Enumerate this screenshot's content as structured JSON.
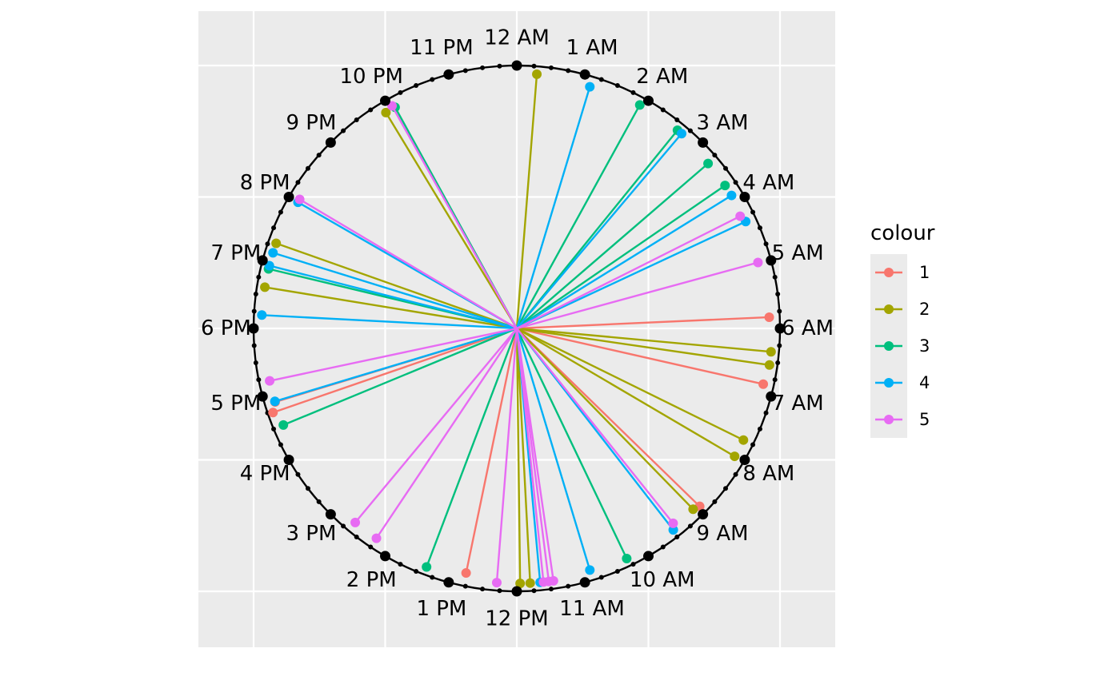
{
  "chart_data": {
    "type": "radial-clock",
    "title": "",
    "clock_labels": [
      "12 AM",
      "1 AM",
      "2 AM",
      "3 AM",
      "4 AM",
      "5 AM",
      "6 AM",
      "7 AM",
      "8 AM",
      "9 AM",
      "10 AM",
      "11 AM",
      "12 PM",
      "1 PM",
      "2 PM",
      "3 PM",
      "4 PM",
      "5 PM",
      "6 PM",
      "7 PM",
      "8 PM",
      "9 PM",
      "10 PM",
      "11 PM"
    ],
    "minor_ticks_per_hour": 3,
    "grid": true,
    "legend": {
      "title": "colour",
      "placement": "right",
      "entries": [
        {
          "label": "1",
          "color": "#F8766D"
        },
        {
          "label": "2",
          "color": "#A3A500"
        },
        {
          "label": "3",
          "color": "#00BF7D"
        },
        {
          "label": "4",
          "color": "#00B0F6"
        },
        {
          "label": "5",
          "color": "#E76BF3"
        }
      ]
    },
    "series": [
      {
        "name": "1",
        "points": [
          {
            "hour": 5.83,
            "r": 0.96
          },
          {
            "hour": 6.85,
            "r": 0.96
          },
          {
            "hour": 8.95,
            "r": 0.97
          },
          {
            "hour": 12.78,
            "r": 0.95
          },
          {
            "hour": 16.87,
            "r": 0.96
          },
          {
            "hour": 16.73,
            "r": 0.98
          }
        ]
      },
      {
        "name": "2",
        "points": [
          {
            "hour": 0.3,
            "r": 0.97
          },
          {
            "hour": 6.35,
            "r": 0.97
          },
          {
            "hour": 6.55,
            "r": 0.97
          },
          {
            "hour": 7.75,
            "r": 0.96
          },
          {
            "hour": 8.03,
            "r": 0.96
          },
          {
            "hour": 9.05,
            "r": 0.96
          },
          {
            "hour": 11.95,
            "r": 0.97
          },
          {
            "hour": 11.8,
            "r": 0.97
          },
          {
            "hour": 18.62,
            "r": 0.97
          },
          {
            "hour": 19.3,
            "r": 0.97
          },
          {
            "hour": 21.92,
            "r": 0.96
          }
        ]
      },
      {
        "name": "3",
        "points": [
          {
            "hour": 1.92,
            "r": 0.97
          },
          {
            "hour": 2.6,
            "r": 0.97
          },
          {
            "hour": 3.28,
            "r": 0.96
          },
          {
            "hour": 3.7,
            "r": 0.96
          },
          {
            "hour": 10.3,
            "r": 0.97
          },
          {
            "hour": 13.38,
            "r": 0.97
          },
          {
            "hour": 16.5,
            "r": 0.96
          },
          {
            "hour": 18.9,
            "r": 0.97
          },
          {
            "hour": 22.08,
            "r": 0.96
          }
        ]
      },
      {
        "name": "4",
        "points": [
          {
            "hour": 1.12,
            "r": 0.96
          },
          {
            "hour": 2.68,
            "r": 0.97
          },
          {
            "hour": 3.88,
            "r": 0.96
          },
          {
            "hour": 4.33,
            "r": 0.96
          },
          {
            "hour": 9.48,
            "r": 0.97
          },
          {
            "hour": 10.88,
            "r": 0.96
          },
          {
            "hour": 11.65,
            "r": 0.97
          },
          {
            "hour": 16.88,
            "r": 0.96
          },
          {
            "hour": 18.2,
            "r": 0.97
          },
          {
            "hour": 18.95,
            "r": 0.97
          },
          {
            "hour": 19.15,
            "r": 0.97
          },
          {
            "hour": 20.0,
            "r": 0.96
          }
        ]
      },
      {
        "name": "5",
        "points": [
          {
            "hour": 4.22,
            "r": 0.95
          },
          {
            "hour": 4.98,
            "r": 0.95
          },
          {
            "hour": 9.42,
            "r": 0.95
          },
          {
            "hour": 11.45,
            "r": 0.97
          },
          {
            "hour": 11.52,
            "r": 0.97
          },
          {
            "hour": 11.6,
            "r": 0.97
          },
          {
            "hour": 12.3,
            "r": 0.97
          },
          {
            "hour": 14.65,
            "r": 0.96
          },
          {
            "hour": 14.25,
            "r": 0.96
          },
          {
            "hour": 17.2,
            "r": 0.96
          },
          {
            "hour": 20.05,
            "r": 0.96
          },
          {
            "hour": 22.05,
            "r": 0.97
          }
        ]
      }
    ]
  }
}
